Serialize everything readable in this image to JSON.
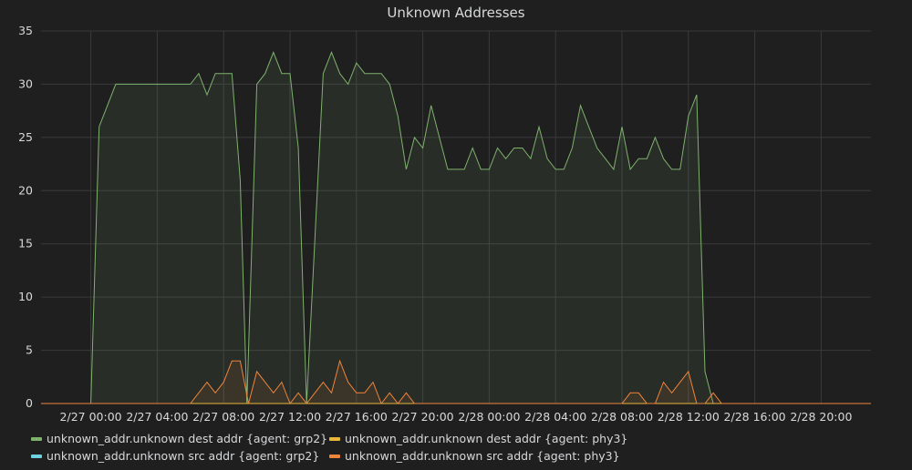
{
  "chart_data": {
    "type": "area",
    "title": "Unknown Addresses",
    "ylim": [
      0,
      35
    ],
    "yticks": [
      0,
      5,
      10,
      15,
      20,
      25,
      30,
      35
    ],
    "x_start_hour": 0,
    "xtick_labels": [
      "2/27 00:00",
      "2/27 04:00",
      "2/27 08:00",
      "2/27 12:00",
      "2/27 16:00",
      "2/27 20:00",
      "2/28 00:00",
      "2/28 04:00",
      "2/28 08:00",
      "2/28 12:00",
      "2/28 16:00",
      "2/28 20:00"
    ],
    "xtick_hours": [
      0,
      4,
      8,
      12,
      16,
      20,
      24,
      28,
      32,
      36,
      40,
      44
    ],
    "grid": true,
    "legend_position": "bottom",
    "series": [
      {
        "name": "unknown_addr.unknown dest addr {agent: grp2}",
        "color": "#7eb26d",
        "points": [
          [
            -3,
            0
          ],
          [
            0,
            0
          ],
          [
            0.5,
            26
          ],
          [
            1.5,
            30
          ],
          [
            2,
            30
          ],
          [
            3,
            30
          ],
          [
            4,
            30
          ],
          [
            5,
            30
          ],
          [
            6.0,
            30
          ],
          [
            6.5,
            31
          ],
          [
            7,
            29
          ],
          [
            7.5,
            31
          ],
          [
            8,
            31
          ],
          [
            8.5,
            31
          ],
          [
            9,
            21
          ],
          [
            9.4,
            0
          ],
          [
            10.0,
            30
          ],
          [
            10.5,
            31
          ],
          [
            11.0,
            33
          ],
          [
            11.5,
            31
          ],
          [
            12,
            31
          ],
          [
            12.5,
            24
          ],
          [
            13.0,
            0
          ],
          [
            14.0,
            31
          ],
          [
            14.5,
            33
          ],
          [
            15,
            31
          ],
          [
            15.5,
            30
          ],
          [
            16.0,
            32
          ],
          [
            16.5,
            31
          ],
          [
            17,
            31
          ],
          [
            17.5,
            31
          ],
          [
            18.0,
            30
          ],
          [
            18.5,
            27
          ],
          [
            19.0,
            22
          ],
          [
            19.5,
            25
          ],
          [
            20,
            24
          ],
          [
            20.5,
            28
          ],
          [
            21,
            25
          ],
          [
            21.5,
            22
          ],
          [
            22,
            22
          ],
          [
            22.5,
            22
          ],
          [
            23,
            24
          ],
          [
            23.5,
            22
          ],
          [
            24,
            22
          ],
          [
            24.5,
            24
          ],
          [
            25,
            23
          ],
          [
            25.5,
            24
          ],
          [
            26,
            24
          ],
          [
            26.5,
            23
          ],
          [
            27,
            26
          ],
          [
            27.5,
            23
          ],
          [
            28,
            22
          ],
          [
            28.5,
            22
          ],
          [
            29,
            24
          ],
          [
            29.5,
            28
          ],
          [
            30,
            26
          ],
          [
            30.5,
            24
          ],
          [
            31,
            23
          ],
          [
            31.5,
            22
          ],
          [
            32,
            26
          ],
          [
            32.5,
            22
          ],
          [
            33,
            23
          ],
          [
            33.5,
            23
          ],
          [
            34,
            25
          ],
          [
            34.5,
            23
          ],
          [
            35,
            22
          ],
          [
            35.5,
            22
          ],
          [
            36,
            27
          ],
          [
            36.5,
            29
          ],
          [
            37.0,
            3
          ],
          [
            37.5,
            0
          ],
          [
            47,
            0
          ]
        ]
      },
      {
        "name": "unknown_addr.unknown dest addr {agent: phy3}",
        "color": "#eab839",
        "points": [
          [
            -3,
            0
          ],
          [
            47,
            0
          ]
        ]
      },
      {
        "name": "unknown_addr.unknown src addr {agent: grp2}",
        "color": "#6ed0e0",
        "points": [
          [
            -3,
            0
          ],
          [
            47,
            0
          ]
        ]
      },
      {
        "name": "unknown_addr.unknown src addr {agent: phy3}",
        "color": "#ef843c",
        "points": [
          [
            -3,
            0
          ],
          [
            6,
            0
          ],
          [
            7,
            2
          ],
          [
            7.5,
            1
          ],
          [
            8,
            2
          ],
          [
            8.5,
            4
          ],
          [
            9,
            4
          ],
          [
            9.5,
            0
          ],
          [
            10,
            3
          ],
          [
            10.5,
            2
          ],
          [
            11,
            1
          ],
          [
            11.5,
            2
          ],
          [
            12,
            0
          ],
          [
            12.5,
            1
          ],
          [
            13,
            0
          ],
          [
            13.5,
            1
          ],
          [
            14,
            2
          ],
          [
            14.5,
            1
          ],
          [
            15,
            4
          ],
          [
            15.5,
            2
          ],
          [
            16,
            1
          ],
          [
            16.5,
            1
          ],
          [
            17,
            2
          ],
          [
            17.5,
            0
          ],
          [
            18,
            1
          ],
          [
            18.5,
            0
          ],
          [
            19,
            1
          ],
          [
            19.5,
            0
          ],
          [
            32,
            0
          ],
          [
            32.5,
            1
          ],
          [
            33,
            1
          ],
          [
            33.5,
            0
          ],
          [
            34,
            0
          ],
          [
            34.5,
            2
          ],
          [
            35,
            1
          ],
          [
            35.5,
            2
          ],
          [
            36,
            3
          ],
          [
            36.5,
            0
          ],
          [
            37,
            0
          ],
          [
            37.5,
            1
          ],
          [
            38,
            0
          ],
          [
            47,
            0
          ]
        ]
      }
    ]
  }
}
